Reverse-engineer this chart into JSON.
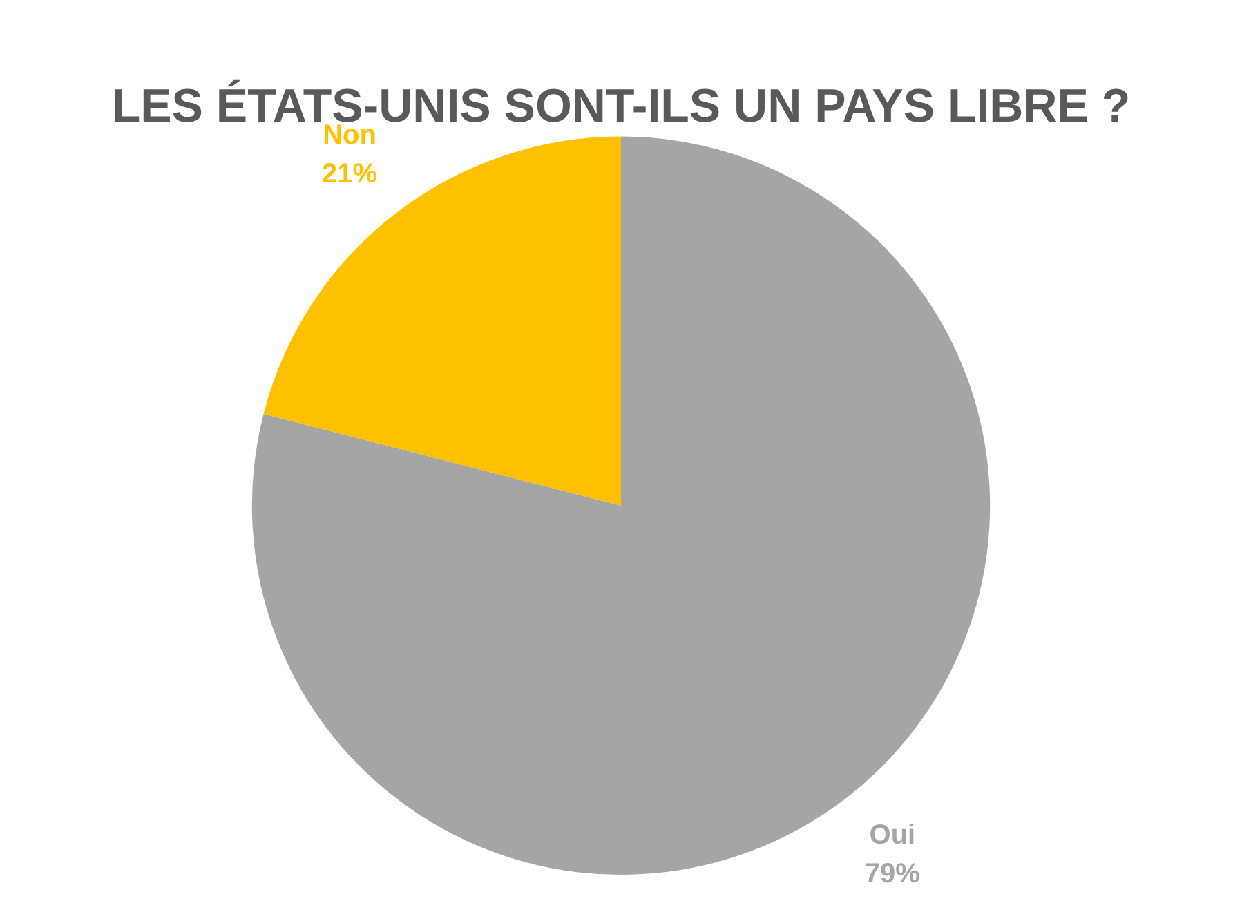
{
  "chart_data": {
    "type": "pie",
    "title": "LES ÉTATS-UNIS SONT-ILS UN PAYS LIBRE ?",
    "categories": [
      "Oui",
      "Non"
    ],
    "values": [
      79,
      21
    ],
    "colors": [
      "#a5a5a5",
      "#ffc000"
    ],
    "value_labels": [
      "79%",
      "21%"
    ],
    "legend": false
  }
}
